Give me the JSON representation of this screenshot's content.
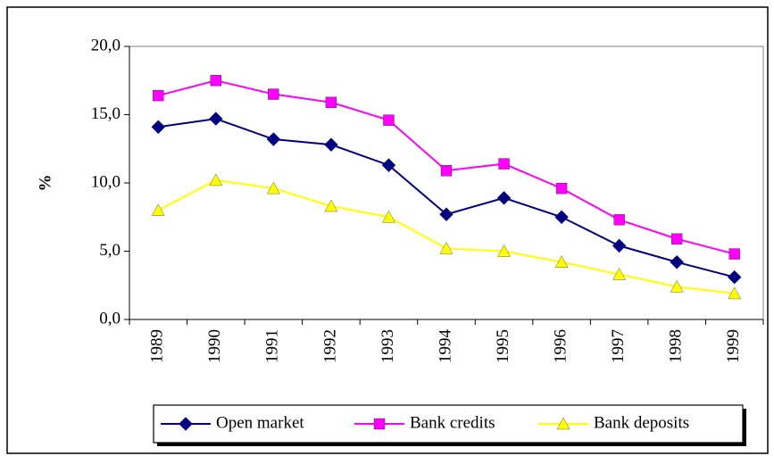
{
  "chart_data": {
    "type": "line",
    "categories": [
      "1989",
      "1990",
      "1991",
      "1992",
      "1993",
      "1994",
      "1995",
      "1996",
      "1997",
      "1998",
      "1999"
    ],
    "y_label": "%",
    "ylim": [
      0,
      20
    ],
    "yticks": [
      {
        "value": 0,
        "label": "0,0"
      },
      {
        "value": 5,
        "label": "5,0"
      },
      {
        "value": 10,
        "label": "10,0"
      },
      {
        "value": 15,
        "label": "15,0"
      },
      {
        "value": 20,
        "label": "20,0"
      }
    ],
    "grid": false,
    "legend": "bottom",
    "series": [
      {
        "name": "Open market",
        "color": "#000080",
        "marker": "diamond",
        "values": [
          14.1,
          14.7,
          13.2,
          12.8,
          11.3,
          7.7,
          8.9,
          7.5,
          5.4,
          4.2,
          3.1
        ]
      },
      {
        "name": "Bank credits",
        "color": "#ff00ff",
        "marker": "square",
        "values": [
          16.4,
          17.5,
          16.5,
          15.9,
          14.6,
          10.9,
          11.4,
          9.6,
          7.3,
          5.9,
          4.8
        ]
      },
      {
        "name": "Bank deposits",
        "color": "#ffff00",
        "marker": "triangle",
        "values": [
          8.0,
          10.2,
          9.6,
          8.3,
          7.5,
          5.2,
          5.0,
          4.2,
          3.3,
          2.4,
          1.9
        ]
      }
    ]
  }
}
